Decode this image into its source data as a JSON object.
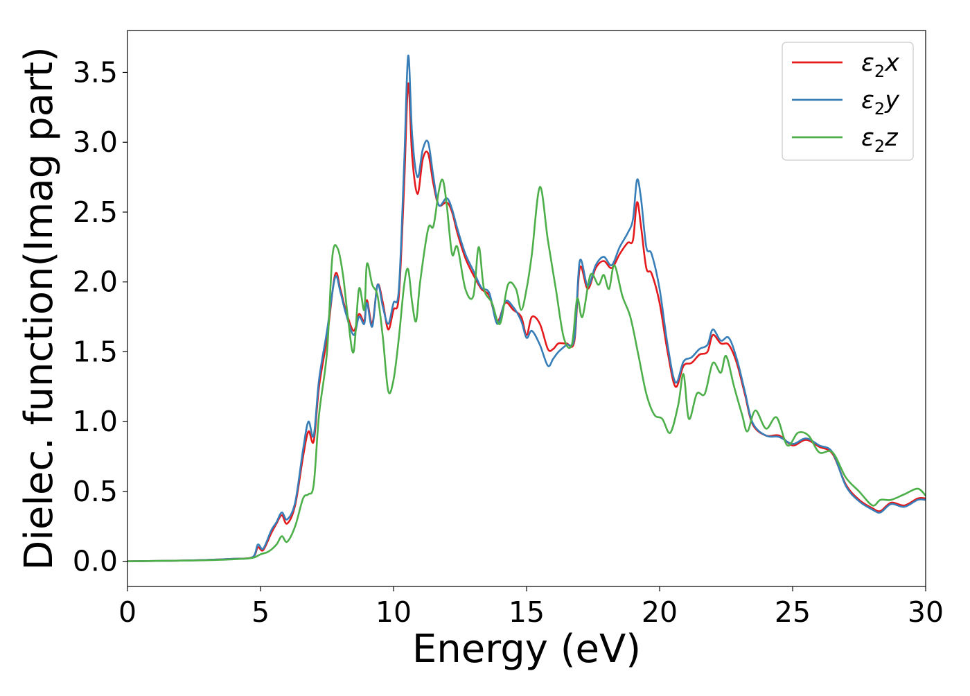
{
  "chart_data": {
    "type": "line",
    "title": "",
    "xlabel": "Energy (eV)",
    "ylabel": "Dielec. function(Imag part)",
    "xlim": [
      0,
      30
    ],
    "ylim": [
      -0.18,
      3.8
    ],
    "xticks": [
      0,
      5,
      10,
      15,
      20,
      25,
      30
    ],
    "yticks": [
      0.0,
      0.5,
      1.0,
      1.5,
      2.0,
      2.5,
      3.0,
      3.5
    ],
    "xtick_labels": [
      "0",
      "5",
      "10",
      "15",
      "20",
      "25",
      "30"
    ],
    "ytick_labels": [
      "0.0",
      "0.5",
      "1.0",
      "1.5",
      "2.0",
      "2.5",
      "3.0",
      "3.5"
    ],
    "grid": false,
    "legend_position": "top-right",
    "series": [
      {
        "name": "ε₂x",
        "legend_base": "ε",
        "legend_sub": "2",
        "legend_var": "x",
        "color": "#e41a1c",
        "points": [
          [
            0,
            0.0
          ],
          [
            2,
            0.005
          ],
          [
            3,
            0.01
          ],
          [
            4,
            0.018
          ],
          [
            4.7,
            0.03
          ],
          [
            4.9,
            0.1
          ],
          [
            5.1,
            0.08
          ],
          [
            5.4,
            0.2
          ],
          [
            5.6,
            0.27
          ],
          [
            5.8,
            0.33
          ],
          [
            6.0,
            0.27
          ],
          [
            6.3,
            0.4
          ],
          [
            6.6,
            0.75
          ],
          [
            6.8,
            0.93
          ],
          [
            7.0,
            0.86
          ],
          [
            7.2,
            1.25
          ],
          [
            7.5,
            1.6
          ],
          [
            7.8,
            2.05
          ],
          [
            8.0,
            1.95
          ],
          [
            8.2,
            1.8
          ],
          [
            8.5,
            1.65
          ],
          [
            8.7,
            1.77
          ],
          [
            8.9,
            1.72
          ],
          [
            9.0,
            1.87
          ],
          [
            9.2,
            1.7
          ],
          [
            9.4,
            1.98
          ],
          [
            9.6,
            1.85
          ],
          [
            9.8,
            1.66
          ],
          [
            10.0,
            1.8
          ],
          [
            10.2,
            1.9
          ],
          [
            10.4,
            2.7
          ],
          [
            10.55,
            3.42
          ],
          [
            10.7,
            2.9
          ],
          [
            10.9,
            2.63
          ],
          [
            11.1,
            2.88
          ],
          [
            11.3,
            2.92
          ],
          [
            11.5,
            2.7
          ],
          [
            11.7,
            2.55
          ],
          [
            12.0,
            2.57
          ],
          [
            12.2,
            2.5
          ],
          [
            12.4,
            2.35
          ],
          [
            12.7,
            2.17
          ],
          [
            13.0,
            2.05
          ],
          [
            13.3,
            1.95
          ],
          [
            13.6,
            1.9
          ],
          [
            13.9,
            1.72
          ],
          [
            14.2,
            1.85
          ],
          [
            14.5,
            1.8
          ],
          [
            14.8,
            1.75
          ],
          [
            15.0,
            1.62
          ],
          [
            15.2,
            1.75
          ],
          [
            15.5,
            1.7
          ],
          [
            15.8,
            1.52
          ],
          [
            16.0,
            1.52
          ],
          [
            16.2,
            1.56
          ],
          [
            16.5,
            1.56
          ],
          [
            16.8,
            1.58
          ],
          [
            17.0,
            2.1
          ],
          [
            17.3,
            1.95
          ],
          [
            17.6,
            2.1
          ],
          [
            17.9,
            2.15
          ],
          [
            18.2,
            2.1
          ],
          [
            18.5,
            2.2
          ],
          [
            18.8,
            2.28
          ],
          [
            19.0,
            2.3
          ],
          [
            19.15,
            2.57
          ],
          [
            19.3,
            2.4
          ],
          [
            19.5,
            2.1
          ],
          [
            19.7,
            2.06
          ],
          [
            20.0,
            1.85
          ],
          [
            20.3,
            1.5
          ],
          [
            20.6,
            1.25
          ],
          [
            20.9,
            1.4
          ],
          [
            21.2,
            1.42
          ],
          [
            21.5,
            1.48
          ],
          [
            21.8,
            1.5
          ],
          [
            22.0,
            1.62
          ],
          [
            22.3,
            1.56
          ],
          [
            22.6,
            1.55
          ],
          [
            22.9,
            1.42
          ],
          [
            23.2,
            1.2
          ],
          [
            23.5,
            0.98
          ],
          [
            24.0,
            0.9
          ],
          [
            24.5,
            0.9
          ],
          [
            25.0,
            0.83
          ],
          [
            25.5,
            0.87
          ],
          [
            26.0,
            0.82
          ],
          [
            26.5,
            0.77
          ],
          [
            27.0,
            0.55
          ],
          [
            27.5,
            0.44
          ],
          [
            28.0,
            0.38
          ],
          [
            28.3,
            0.36
          ],
          [
            28.7,
            0.42
          ],
          [
            29.2,
            0.4
          ],
          [
            29.7,
            0.45
          ],
          [
            30.0,
            0.45
          ]
        ]
      },
      {
        "name": "ε₂y",
        "legend_base": "ε",
        "legend_sub": "2",
        "legend_var": "y",
        "color": "#377eb8",
        "points": [
          [
            0,
            0.0
          ],
          [
            2,
            0.005
          ],
          [
            3,
            0.01
          ],
          [
            4,
            0.018
          ],
          [
            4.7,
            0.03
          ],
          [
            4.9,
            0.12
          ],
          [
            5.1,
            0.09
          ],
          [
            5.4,
            0.22
          ],
          [
            5.6,
            0.28
          ],
          [
            5.8,
            0.35
          ],
          [
            6.0,
            0.3
          ],
          [
            6.3,
            0.42
          ],
          [
            6.6,
            0.8
          ],
          [
            6.8,
            1.0
          ],
          [
            7.0,
            0.9
          ],
          [
            7.2,
            1.3
          ],
          [
            7.5,
            1.65
          ],
          [
            7.8,
            2.03
          ],
          [
            8.0,
            1.93
          ],
          [
            8.2,
            1.78
          ],
          [
            8.5,
            1.62
          ],
          [
            8.7,
            1.75
          ],
          [
            8.9,
            1.7
          ],
          [
            9.0,
            1.85
          ],
          [
            9.2,
            1.68
          ],
          [
            9.4,
            1.98
          ],
          [
            9.6,
            1.82
          ],
          [
            9.8,
            1.7
          ],
          [
            10.0,
            1.85
          ],
          [
            10.2,
            1.95
          ],
          [
            10.4,
            2.85
          ],
          [
            10.55,
            3.62
          ],
          [
            10.7,
            3.05
          ],
          [
            10.9,
            2.75
          ],
          [
            11.1,
            2.95
          ],
          [
            11.3,
            3.0
          ],
          [
            11.5,
            2.75
          ],
          [
            11.7,
            2.55
          ],
          [
            12.0,
            2.6
          ],
          [
            12.2,
            2.52
          ],
          [
            12.4,
            2.38
          ],
          [
            12.7,
            2.2
          ],
          [
            13.0,
            2.08
          ],
          [
            13.3,
            1.96
          ],
          [
            13.6,
            1.92
          ],
          [
            13.9,
            1.7
          ],
          [
            14.2,
            1.86
          ],
          [
            14.5,
            1.82
          ],
          [
            14.8,
            1.72
          ],
          [
            15.0,
            1.6
          ],
          [
            15.2,
            1.65
          ],
          [
            15.5,
            1.55
          ],
          [
            15.8,
            1.4
          ],
          [
            16.0,
            1.45
          ],
          [
            16.2,
            1.5
          ],
          [
            16.5,
            1.55
          ],
          [
            16.8,
            1.6
          ],
          [
            17.0,
            2.15
          ],
          [
            17.3,
            1.97
          ],
          [
            17.6,
            2.12
          ],
          [
            17.9,
            2.18
          ],
          [
            18.2,
            2.12
          ],
          [
            18.5,
            2.25
          ],
          [
            18.8,
            2.35
          ],
          [
            19.0,
            2.45
          ],
          [
            19.15,
            2.73
          ],
          [
            19.3,
            2.6
          ],
          [
            19.5,
            2.25
          ],
          [
            19.7,
            2.2
          ],
          [
            20.0,
            1.95
          ],
          [
            20.3,
            1.55
          ],
          [
            20.6,
            1.28
          ],
          [
            20.9,
            1.43
          ],
          [
            21.2,
            1.46
          ],
          [
            21.5,
            1.52
          ],
          [
            21.8,
            1.55
          ],
          [
            22.0,
            1.66
          ],
          [
            22.3,
            1.58
          ],
          [
            22.6,
            1.6
          ],
          [
            22.9,
            1.45
          ],
          [
            23.2,
            1.22
          ],
          [
            23.5,
            0.99
          ],
          [
            24.0,
            0.9
          ],
          [
            24.5,
            0.89
          ],
          [
            25.0,
            0.84
          ],
          [
            25.5,
            0.88
          ],
          [
            26.0,
            0.83
          ],
          [
            26.5,
            0.78
          ],
          [
            27.0,
            0.54
          ],
          [
            27.5,
            0.43
          ],
          [
            28.0,
            0.37
          ],
          [
            28.3,
            0.35
          ],
          [
            28.7,
            0.41
          ],
          [
            29.2,
            0.39
          ],
          [
            29.7,
            0.44
          ],
          [
            30.0,
            0.44
          ]
        ]
      },
      {
        "name": "ε₂z",
        "legend_base": "ε",
        "legend_sub": "2",
        "legend_var": "z",
        "color": "#4daf4a",
        "points": [
          [
            0,
            0.0
          ],
          [
            2,
            0.005
          ],
          [
            3,
            0.008
          ],
          [
            4,
            0.015
          ],
          [
            4.7,
            0.025
          ],
          [
            5.0,
            0.05
          ],
          [
            5.3,
            0.07
          ],
          [
            5.6,
            0.12
          ],
          [
            5.8,
            0.18
          ],
          [
            6.0,
            0.14
          ],
          [
            6.3,
            0.25
          ],
          [
            6.6,
            0.45
          ],
          [
            6.8,
            0.48
          ],
          [
            7.0,
            0.55
          ],
          [
            7.2,
            1.05
          ],
          [
            7.5,
            1.5
          ],
          [
            7.7,
            2.18
          ],
          [
            7.9,
            2.24
          ],
          [
            8.1,
            2.05
          ],
          [
            8.3,
            1.72
          ],
          [
            8.5,
            1.5
          ],
          [
            8.7,
            1.95
          ],
          [
            8.9,
            1.8
          ],
          [
            9.0,
            2.13
          ],
          [
            9.2,
            1.98
          ],
          [
            9.4,
            1.9
          ],
          [
            9.6,
            1.6
          ],
          [
            9.8,
            1.22
          ],
          [
            10.0,
            1.3
          ],
          [
            10.2,
            1.6
          ],
          [
            10.4,
            1.98
          ],
          [
            10.55,
            2.09
          ],
          [
            10.7,
            1.85
          ],
          [
            10.85,
            1.72
          ],
          [
            11.0,
            2.0
          ],
          [
            11.3,
            2.38
          ],
          [
            11.5,
            2.4
          ],
          [
            11.7,
            2.65
          ],
          [
            11.85,
            2.73
          ],
          [
            12.0,
            2.55
          ],
          [
            12.2,
            2.2
          ],
          [
            12.4,
            2.25
          ],
          [
            12.7,
            1.95
          ],
          [
            13.0,
            1.9
          ],
          [
            13.2,
            2.25
          ],
          [
            13.4,
            1.95
          ],
          [
            13.7,
            1.85
          ],
          [
            14.0,
            1.7
          ],
          [
            14.3,
            1.98
          ],
          [
            14.6,
            1.95
          ],
          [
            14.8,
            1.8
          ],
          [
            15.0,
            1.95
          ],
          [
            15.2,
            2.2
          ],
          [
            15.5,
            2.68
          ],
          [
            15.8,
            2.3
          ],
          [
            16.1,
            1.95
          ],
          [
            16.4,
            1.6
          ],
          [
            16.7,
            1.55
          ],
          [
            16.9,
            1.88
          ],
          [
            17.1,
            1.75
          ],
          [
            17.4,
            2.05
          ],
          [
            17.7,
            1.98
          ],
          [
            17.9,
            2.05
          ],
          [
            18.1,
            1.95
          ],
          [
            18.3,
            2.12
          ],
          [
            18.6,
            1.9
          ],
          [
            18.9,
            1.75
          ],
          [
            19.2,
            1.48
          ],
          [
            19.5,
            1.2
          ],
          [
            19.8,
            1.05
          ],
          [
            20.1,
            1.02
          ],
          [
            20.4,
            0.92
          ],
          [
            20.7,
            1.12
          ],
          [
            20.9,
            1.34
          ],
          [
            21.1,
            1.02
          ],
          [
            21.4,
            1.2
          ],
          [
            21.7,
            1.2
          ],
          [
            22.0,
            1.42
          ],
          [
            22.3,
            1.35
          ],
          [
            22.5,
            1.47
          ],
          [
            22.8,
            1.25
          ],
          [
            23.1,
            1.05
          ],
          [
            23.3,
            0.93
          ],
          [
            23.6,
            1.08
          ],
          [
            24.0,
            0.95
          ],
          [
            24.4,
            1.03
          ],
          [
            24.8,
            0.83
          ],
          [
            25.2,
            0.92
          ],
          [
            25.6,
            0.9
          ],
          [
            26.0,
            0.78
          ],
          [
            26.5,
            0.78
          ],
          [
            27.0,
            0.6
          ],
          [
            27.5,
            0.5
          ],
          [
            28.0,
            0.4
          ],
          [
            28.3,
            0.44
          ],
          [
            28.7,
            0.44
          ],
          [
            29.2,
            0.48
          ],
          [
            29.7,
            0.52
          ],
          [
            30.0,
            0.47
          ]
        ]
      }
    ]
  }
}
